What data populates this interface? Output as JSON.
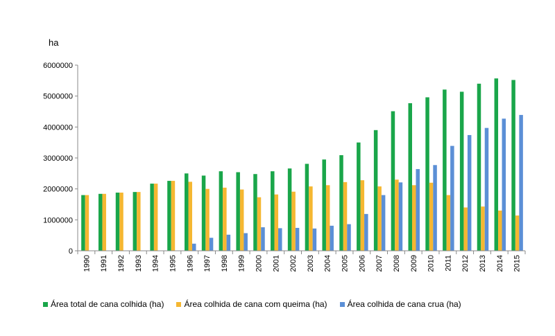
{
  "chart_data": {
    "type": "bar",
    "ylabel": "ha",
    "ylim": [
      0,
      6000000
    ],
    "yticks": [
      "0",
      "1000000",
      "2000000",
      "3000000",
      "4000000",
      "5000000",
      "6000000"
    ],
    "categories": [
      "1990",
      "1991",
      "1992",
      "1993",
      "1994",
      "1995",
      "1996",
      "1997",
      "1998",
      "1999",
      "2000",
      "2001",
      "2002",
      "2003",
      "2004",
      "2005",
      "2006",
      "2007",
      "2008",
      "2009",
      "2010",
      "2011",
      "2012",
      "2013",
      "2014",
      "2015"
    ],
    "series": [
      {
        "name": "Área total de cana colhida (ha)",
        "color": "#1aa64a",
        "values": [
          1800000,
          1840000,
          1880000,
          1900000,
          2170000,
          2260000,
          2500000,
          2430000,
          2570000,
          2540000,
          2480000,
          2570000,
          2660000,
          2810000,
          2950000,
          3090000,
          3500000,
          3900000,
          4510000,
          4770000,
          4960000,
          5210000,
          5140000,
          5400000,
          5570000,
          5520000
        ]
      },
      {
        "name": "Área colhida de cana com queima (ha)",
        "color": "#f5b731",
        "values": [
          1800000,
          1840000,
          1880000,
          1900000,
          2170000,
          2260000,
          2230000,
          2000000,
          2040000,
          1980000,
          1730000,
          1820000,
          1910000,
          2080000,
          2120000,
          2220000,
          2280000,
          2080000,
          2300000,
          2120000,
          2200000,
          1800000,
          1400000,
          1430000,
          1300000,
          1140000
        ]
      },
      {
        "name": "Área colhida de cana crua (ha)",
        "color": "#5b8fd6",
        "values": [
          0,
          0,
          0,
          0,
          0,
          0,
          230000,
          420000,
          520000,
          570000,
          760000,
          730000,
          740000,
          720000,
          810000,
          860000,
          1190000,
          1800000,
          2210000,
          2640000,
          2770000,
          3390000,
          3740000,
          3970000,
          4270000,
          4390000
        ]
      }
    ]
  }
}
